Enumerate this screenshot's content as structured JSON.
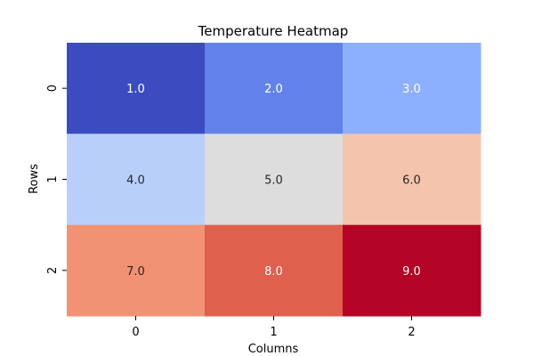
{
  "chart_data": {
    "type": "heatmap",
    "title": "Temperature Heatmap",
    "xlabel": "Columns",
    "ylabel": "Rows",
    "x_categories": [
      "0",
      "1",
      "2"
    ],
    "y_categories": [
      "0",
      "1",
      "2"
    ],
    "values": [
      [
        1.0,
        2.0,
        3.0
      ],
      [
        4.0,
        5.0,
        6.0
      ],
      [
        7.0,
        8.0,
        9.0
      ]
    ],
    "cell_labels": [
      [
        "1.0",
        "2.0",
        "3.0"
      ],
      [
        "4.0",
        "5.0",
        "6.0"
      ],
      [
        "7.0",
        "8.0",
        "9.0"
      ]
    ],
    "colormap": "coolwarm",
    "cell_colors": [
      [
        "#3b4cc0",
        "#6282ea",
        "#8db0fe"
      ],
      [
        "#b8d0f9",
        "#dddddd",
        "#f5c4ac"
      ],
      [
        "#f29274",
        "#de604d",
        "#b40426"
      ]
    ],
    "text_colors": [
      [
        "#ffffff",
        "#ffffff",
        "#ffffff"
      ],
      [
        "#262626",
        "#262626",
        "#262626"
      ],
      [
        "#262626",
        "#ffffff",
        "#ffffff"
      ]
    ],
    "legend": false,
    "grid": false
  }
}
